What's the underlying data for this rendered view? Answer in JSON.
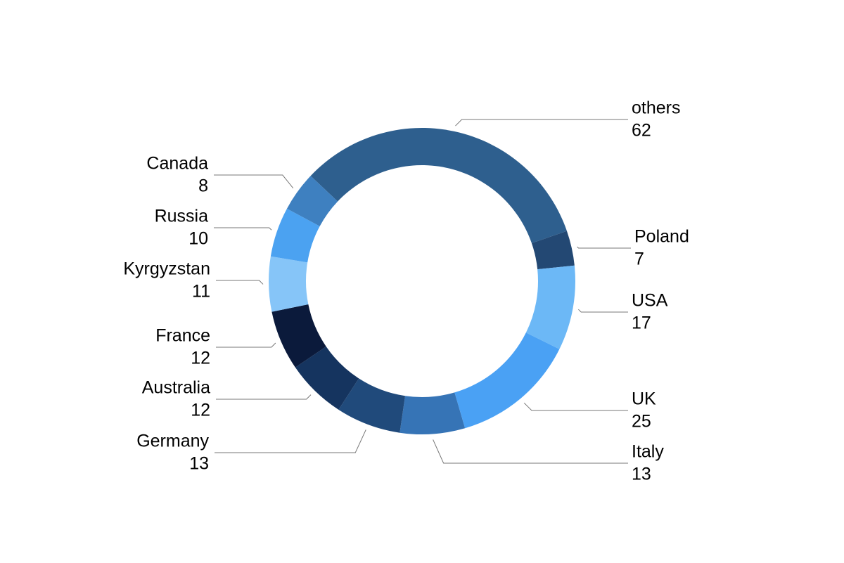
{
  "chart_data": {
    "type": "donut",
    "categories": [
      "others",
      "Poland",
      "USA",
      "UK",
      "Italy",
      "Germany",
      "Australia",
      "France",
      "Kyrgyzstan",
      "Russia",
      "Canada"
    ],
    "values": [
      62,
      7,
      17,
      25,
      13,
      13,
      12,
      12,
      11,
      10,
      8
    ],
    "colors": [
      "#2e5f8e",
      "#234873",
      "#6cb8f6",
      "#4aa1f4",
      "#3674b6",
      "#204a7b",
      "#15345f",
      "#0b1a3b",
      "#86c5f8",
      "#4ba2f1",
      "#3e80c0"
    ]
  }
}
